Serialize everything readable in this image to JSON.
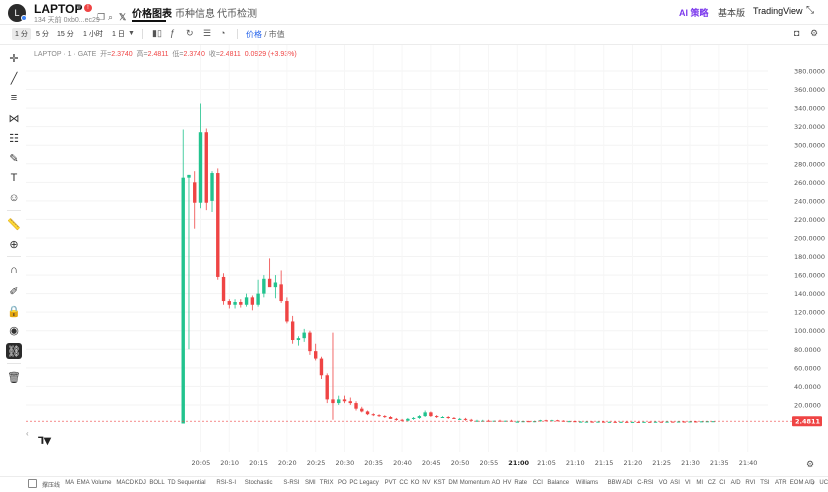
{
  "header": {
    "logo_letter": "L",
    "token_name": "LAPTOP",
    "token_alert": "!",
    "token_sub": "134 天前 0xb0...ec29",
    "tabs": [
      {
        "label": "价格图表",
        "active": true
      },
      {
        "label": "币种信息",
        "active": false
      },
      {
        "label": "代币检测",
        "active": false
      }
    ],
    "ai_label": "AI 策略",
    "basic_label": "基本版",
    "tv_label": "TradingView"
  },
  "toolbar": {
    "timeframes": [
      {
        "label": "1 分",
        "active": true
      },
      {
        "label": "5 分",
        "active": false
      },
      {
        "label": "15 分",
        "active": false
      },
      {
        "label": "1 小时",
        "active": false
      },
      {
        "label": "1 日",
        "active": false
      }
    ],
    "price_label": "价格",
    "separator": " / ",
    "mcap_label": "市值"
  },
  "legend": {
    "symbol": "LAPTOP · 1 · GATE",
    "open_label": "开=",
    "open": "2.3740",
    "high_label": "高=",
    "high": "2.4811",
    "low_label": "低=",
    "low": "2.3740",
    "close_label": "收=",
    "close": "2.4811",
    "change": "0.0929 (+3.93%)"
  },
  "chart_data": {
    "type": "candlestick",
    "y_ticks": [
      "380.0000",
      "360.0000",
      "340.0000",
      "320.0000",
      "300.0000",
      "280.0000",
      "260.0000",
      "240.0000",
      "220.0000",
      "200.0000",
      "180.0000",
      "160.0000",
      "140.0000",
      "120.0000",
      "100.0000",
      "80.0000",
      "60.0000",
      "40.0000",
      "20.0000"
    ],
    "ylim": [
      0,
      390
    ],
    "x_ticks": [
      "20:05",
      "20:10",
      "20:15",
      "20:20",
      "20:25",
      "20:30",
      "20:35",
      "20:40",
      "20:45",
      "20:50",
      "20:55",
      "21:00",
      "21:05",
      "21:10",
      "21:15",
      "21:20",
      "21:25",
      "21:30",
      "21:35",
      "21:40"
    ],
    "bold_tick": "21:00",
    "last_price": "2.4811",
    "up_color": "#22c38e",
    "down_color": "#ef4444",
    "candles": [
      {
        "t": "20:02",
        "o": 0,
        "h": 317,
        "l": 0,
        "c": 265
      },
      {
        "t": "20:03",
        "o": 265,
        "h": 268,
        "l": 80,
        "c": 268
      },
      {
        "t": "20:04",
        "o": 260,
        "h": 272,
        "l": 210,
        "c": 238
      },
      {
        "t": "20:05",
        "o": 238,
        "h": 345,
        "l": 232,
        "c": 314
      },
      {
        "t": "20:06",
        "o": 314,
        "h": 318,
        "l": 230,
        "c": 238
      },
      {
        "t": "20:07",
        "o": 240,
        "h": 272,
        "l": 228,
        "c": 270
      },
      {
        "t": "20:08",
        "o": 270,
        "h": 275,
        "l": 155,
        "c": 158
      },
      {
        "t": "20:09",
        "o": 158,
        "h": 162,
        "l": 128,
        "c": 132
      },
      {
        "t": "20:10",
        "o": 132,
        "h": 134,
        "l": 124,
        "c": 128
      },
      {
        "t": "20:11",
        "o": 128,
        "h": 134,
        "l": 124,
        "c": 131
      },
      {
        "t": "20:12",
        "o": 131,
        "h": 134,
        "l": 125,
        "c": 128
      },
      {
        "t": "20:13",
        "o": 128,
        "h": 140,
        "l": 126,
        "c": 136
      },
      {
        "t": "20:14",
        "o": 136,
        "h": 138,
        "l": 122,
        "c": 128
      },
      {
        "t": "20:15",
        "o": 128,
        "h": 155,
        "l": 126,
        "c": 140
      },
      {
        "t": "20:16",
        "o": 140,
        "h": 160,
        "l": 136,
        "c": 156
      },
      {
        "t": "20:17",
        "o": 156,
        "h": 178,
        "l": 150,
        "c": 147
      },
      {
        "t": "20:18",
        "o": 147,
        "h": 160,
        "l": 135,
        "c": 152
      },
      {
        "t": "20:19",
        "o": 150,
        "h": 165,
        "l": 130,
        "c": 132
      },
      {
        "t": "20:20",
        "o": 132,
        "h": 136,
        "l": 108,
        "c": 110
      },
      {
        "t": "20:21",
        "o": 110,
        "h": 116,
        "l": 86,
        "c": 90
      },
      {
        "t": "20:22",
        "o": 90,
        "h": 94,
        "l": 84,
        "c": 92
      },
      {
        "t": "20:23",
        "o": 92,
        "h": 102,
        "l": 88,
        "c": 98
      },
      {
        "t": "20:24",
        "o": 98,
        "h": 100,
        "l": 74,
        "c": 78
      },
      {
        "t": "20:25",
        "o": 78,
        "h": 86,
        "l": 68,
        "c": 70
      },
      {
        "t": "20:26",
        "o": 70,
        "h": 72,
        "l": 48,
        "c": 52
      },
      {
        "t": "20:27",
        "o": 52,
        "h": 54,
        "l": 22,
        "c": 26
      },
      {
        "t": "20:28",
        "o": 26,
        "h": 98,
        "l": 4,
        "c": 22
      },
      {
        "t": "20:29",
        "o": 22,
        "h": 30,
        "l": 20,
        "c": 26
      },
      {
        "t": "20:30",
        "o": 26,
        "h": 30,
        "l": 22,
        "c": 24
      },
      {
        "t": "20:31",
        "o": 24,
        "h": 28,
        "l": 20,
        "c": 22
      },
      {
        "t": "20:32",
        "o": 22,
        "h": 24,
        "l": 14,
        "c": 16
      },
      {
        "t": "20:33",
        "o": 16,
        "h": 18,
        "l": 12,
        "c": 13
      },
      {
        "t": "20:34",
        "o": 13,
        "h": 14,
        "l": 9,
        "c": 10
      },
      {
        "t": "20:35",
        "o": 10,
        "h": 11,
        "l": 8,
        "c": 9
      },
      {
        "t": "20:36",
        "o": 9,
        "h": 10,
        "l": 7,
        "c": 8
      },
      {
        "t": "20:37",
        "o": 8,
        "h": 9,
        "l": 6,
        "c": 7
      },
      {
        "t": "20:38",
        "o": 7,
        "h": 8,
        "l": 5,
        "c": 5
      },
      {
        "t": "20:39",
        "o": 5,
        "h": 6,
        "l": 3,
        "c": 4
      },
      {
        "t": "20:40",
        "o": 4,
        "h": 5,
        "l": 2,
        "c": 3
      },
      {
        "t": "20:41",
        "o": 3,
        "h": 6,
        "l": 2,
        "c": 5
      },
      {
        "t": "20:42",
        "o": 5,
        "h": 7,
        "l": 4,
        "c": 6
      },
      {
        "t": "20:43",
        "o": 6,
        "h": 9,
        "l": 5,
        "c": 8
      },
      {
        "t": "20:44",
        "o": 8,
        "h": 14,
        "l": 7,
        "c": 12
      },
      {
        "t": "20:45",
        "o": 12,
        "h": 13,
        "l": 7,
        "c": 8
      },
      {
        "t": "20:46",
        "o": 8,
        "h": 9,
        "l": 6,
        "c": 7
      },
      {
        "t": "20:47",
        "o": 7,
        "h": 8,
        "l": 6,
        "c": 7
      },
      {
        "t": "20:48",
        "o": 7,
        "h": 8,
        "l": 5,
        "c": 6
      },
      {
        "t": "20:49",
        "o": 6,
        "h": 7,
        "l": 5,
        "c": 5
      },
      {
        "t": "20:50",
        "o": 5,
        "h": 6,
        "l": 4,
        "c": 5
      },
      {
        "t": "20:51",
        "o": 5,
        "h": 6,
        "l": 3,
        "c": 4
      },
      {
        "t": "20:52",
        "o": 4,
        "h": 5,
        "l": 3,
        "c": 3
      },
      {
        "t": "20:53",
        "o": 3,
        "h": 4,
        "l": 2,
        "c": 3
      },
      {
        "t": "20:54",
        "o": 3,
        "h": 4,
        "l": 2,
        "c": 3
      },
      {
        "t": "20:55",
        "o": 3,
        "h": 4,
        "l": 2,
        "c": 2
      },
      {
        "t": "20:56",
        "o": 2,
        "h": 3,
        "l": 2,
        "c": 3
      },
      {
        "t": "20:57",
        "o": 3,
        "h": 4,
        "l": 2,
        "c": 2
      },
      {
        "t": "20:58",
        "o": 2,
        "h": 3,
        "l": 2,
        "c": 3
      },
      {
        "t": "20:59",
        "o": 3,
        "h": 4,
        "l": 2,
        "c": 2
      },
      {
        "t": "21:00",
        "o": 2,
        "h": 3,
        "l": 1.5,
        "c": 2
      },
      {
        "t": "21:01",
        "o": 2,
        "h": 3,
        "l": 1.5,
        "c": 2.5
      },
      {
        "t": "21:02",
        "o": 2.5,
        "h": 3,
        "l": 2,
        "c": 2
      },
      {
        "t": "21:03",
        "o": 2,
        "h": 3,
        "l": 1.5,
        "c": 2.5
      },
      {
        "t": "21:04",
        "o": 2.5,
        "h": 4,
        "l": 2,
        "c": 3.5
      },
      {
        "t": "21:05",
        "o": 3.5,
        "h": 4,
        "l": 2.5,
        "c": 3
      },
      {
        "t": "21:06",
        "o": 3,
        "h": 4,
        "l": 2.5,
        "c": 3.5
      },
      {
        "t": "21:07",
        "o": 3.5,
        "h": 4,
        "l": 2.5,
        "c": 3
      },
      {
        "t": "21:08",
        "o": 3,
        "h": 3.5,
        "l": 2,
        "c": 2.5
      },
      {
        "t": "21:09",
        "o": 2.5,
        "h": 3,
        "l": 2,
        "c": 2.5
      },
      {
        "t": "21:10",
        "o": 2.5,
        "h": 3,
        "l": 2,
        "c": 2
      },
      {
        "t": "21:11",
        "o": 2,
        "h": 2.5,
        "l": 1.5,
        "c": 2
      },
      {
        "t": "21:12",
        "o": 2,
        "h": 2.5,
        "l": 1.5,
        "c": 2
      },
      {
        "t": "21:13",
        "o": 2,
        "h": 2.5,
        "l": 1.5,
        "c": 1.8
      },
      {
        "t": "21:14",
        "o": 1.8,
        "h": 2.2,
        "l": 1.5,
        "c": 2
      },
      {
        "t": "21:15",
        "o": 2,
        "h": 2.2,
        "l": 1.5,
        "c": 1.8
      },
      {
        "t": "21:16",
        "o": 1.8,
        "h": 2,
        "l": 1.5,
        "c": 1.8
      },
      {
        "t": "21:17",
        "o": 1.8,
        "h": 2,
        "l": 1.4,
        "c": 1.6
      },
      {
        "t": "21:18",
        "o": 1.6,
        "h": 2,
        "l": 1.4,
        "c": 1.8
      },
      {
        "t": "21:19",
        "o": 1.8,
        "h": 2,
        "l": 1.4,
        "c": 1.6
      },
      {
        "t": "21:20",
        "o": 1.6,
        "h": 1.9,
        "l": 1.4,
        "c": 1.7
      },
      {
        "t": "21:21",
        "o": 1.7,
        "h": 1.9,
        "l": 1.4,
        "c": 1.6
      },
      {
        "t": "21:22",
        "o": 1.6,
        "h": 1.9,
        "l": 1.4,
        "c": 1.8
      },
      {
        "t": "21:23",
        "o": 1.8,
        "h": 2,
        "l": 1.5,
        "c": 1.7
      },
      {
        "t": "21:24",
        "o": 1.7,
        "h": 2,
        "l": 1.5,
        "c": 1.9
      },
      {
        "t": "21:25",
        "o": 1.9,
        "h": 2.1,
        "l": 1.6,
        "c": 1.8
      },
      {
        "t": "21:26",
        "o": 1.8,
        "h": 2.1,
        "l": 1.6,
        "c": 2
      },
      {
        "t": "21:27",
        "o": 2,
        "h": 2.2,
        "l": 1.7,
        "c": 1.9
      },
      {
        "t": "21:28",
        "o": 1.9,
        "h": 2.2,
        "l": 1.7,
        "c": 2.1
      },
      {
        "t": "21:29",
        "o": 2.1,
        "h": 2.3,
        "l": 1.8,
        "c": 2
      },
      {
        "t": "21:30",
        "o": 2,
        "h": 2.3,
        "l": 1.8,
        "c": 2.2
      },
      {
        "t": "21:31",
        "o": 2.2,
        "h": 2.4,
        "l": 1.9,
        "c": 2.1
      },
      {
        "t": "21:32",
        "o": 2.1,
        "h": 2.4,
        "l": 2,
        "c": 2.3
      },
      {
        "t": "21:33",
        "o": 2.3,
        "h": 2.5,
        "l": 2.1,
        "c": 2.37
      },
      {
        "t": "21:34",
        "o": 2.374,
        "h": 2.4811,
        "l": 2.374,
        "c": 2.4811
      }
    ]
  },
  "indicators": [
    "撑压线",
    "MA",
    "EMA",
    "Volume",
    "MACD",
    "KDJ",
    "BOLL",
    "TD Sequential",
    "RSI-S-I",
    "Stochastic",
    "S-RSI",
    "SMI",
    "TRIX",
    "PO",
    "PC Legacy",
    "PVT",
    "CC",
    "KO",
    "NV",
    "KST",
    "DM",
    "Momentum",
    "AO",
    "HV",
    "Rate",
    "CCI",
    "Balance",
    "Williams",
    "BBW",
    "ADI",
    "C-RSI",
    "VO",
    "ASI",
    "VI",
    "MI",
    "CZ",
    "CI",
    "A/D",
    "RVI",
    "TSI",
    "ATR",
    "EOM",
    "A/D",
    "UCI"
  ],
  "indicators_more": "›"
}
